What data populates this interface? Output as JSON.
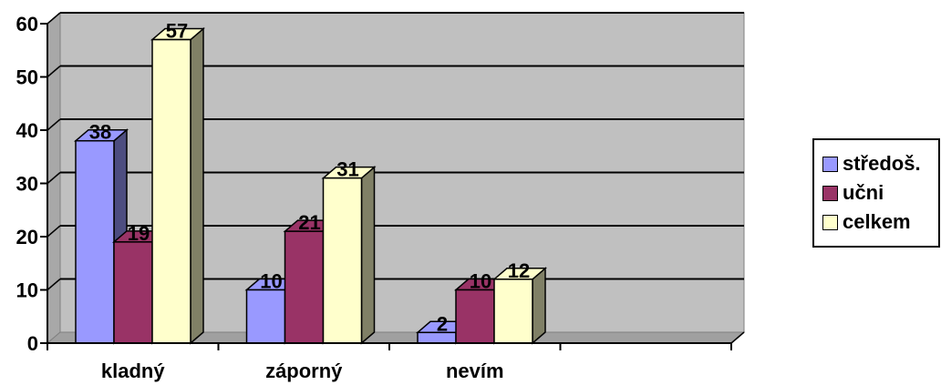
{
  "chart_data": {
    "type": "bar",
    "categories": [
      "kladný",
      "záporný",
      "nevím"
    ],
    "series": [
      {
        "name": "středoš.",
        "values": [
          38,
          10,
          2
        ],
        "color": "#9999FF",
        "side": "#4D4D80"
      },
      {
        "name": "učni",
        "values": [
          19,
          21,
          10
        ],
        "color": "#993366",
        "side": "#4D1A33"
      },
      {
        "name": "celkem",
        "values": [
          57,
          31,
          12
        ],
        "color": "#FFFFCC",
        "side": "#808066"
      }
    ],
    "ylim": [
      0,
      60
    ],
    "yticks": [
      0,
      10,
      20,
      30,
      40,
      50,
      60
    ],
    "grid": true,
    "legend": "right",
    "plot_background": "#C0C0C0"
  }
}
